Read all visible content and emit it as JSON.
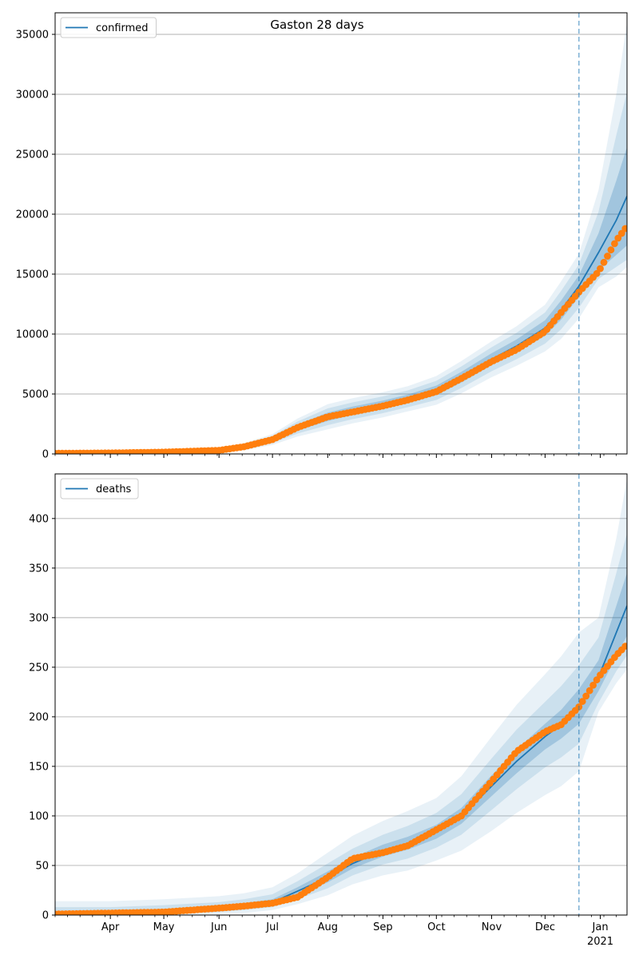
{
  "figure": {
    "title": "Gaston 28 days"
  },
  "colors": {
    "model": "#1f77b4",
    "observed": "#ff7f0e",
    "band": "#1f77b4",
    "grid": "#b0b0b0",
    "forecast_line": "#1f77b4"
  },
  "x_axis": {
    "month_ticks": [
      {
        "date": "2020-04-01",
        "label": "Apr"
      },
      {
        "date": "2020-05-01",
        "label": "May"
      },
      {
        "date": "2020-06-01",
        "label": "Jun"
      },
      {
        "date": "2020-07-01",
        "label": "Jul"
      },
      {
        "date": "2020-08-01",
        "label": "Aug"
      },
      {
        "date": "2020-09-01",
        "label": "Sep"
      },
      {
        "date": "2020-10-01",
        "label": "Oct"
      },
      {
        "date": "2020-11-01",
        "label": "Nov"
      },
      {
        "date": "2020-12-01",
        "label": "Dec"
      },
      {
        "date": "2021-01-01",
        "label": "Jan",
        "sublabel": "2021"
      }
    ]
  },
  "chart_data": [
    {
      "type": "line",
      "title": "Gaston 28 days",
      "legend": {
        "label": "confirmed",
        "placement": "top-left"
      },
      "xlim": [
        "2020-03-01",
        "2021-01-16"
      ],
      "ylim": [
        0,
        36800
      ],
      "yticks": [
        0,
        5000,
        10000,
        15000,
        20000,
        25000,
        30000,
        35000
      ],
      "grid": "horizontal",
      "forecast_start": "2020-12-20",
      "model": {
        "name": "confirmed",
        "x": [
          "2020-03-01",
          "2020-04-01",
          "2020-05-01",
          "2020-06-01",
          "2020-06-15",
          "2020-07-01",
          "2020-07-15",
          "2020-08-01",
          "2020-08-15",
          "2020-09-01",
          "2020-09-15",
          "2020-10-01",
          "2020-10-15",
          "2020-11-01",
          "2020-11-15",
          "2020-12-01",
          "2020-12-10",
          "2020-12-20",
          "2020-12-31",
          "2021-01-10",
          "2021-01-16"
        ],
        "y": [
          50,
          80,
          150,
          300,
          600,
          1200,
          2200,
          3100,
          3600,
          4100,
          4600,
          5300,
          6400,
          7900,
          9000,
          10500,
          12000,
          14000,
          16800,
          19500,
          21500
        ],
        "bands": [
          {
            "lower": [
              40,
              60,
              120,
              250,
              500,
              1050,
              1950,
              2750,
              3250,
              3750,
              4250,
              4900,
              5950,
              7400,
              8450,
              9850,
              11200,
              13100,
              15300,
              16600,
              17400
            ],
            "upper": [
              60,
              100,
              180,
              350,
              700,
              1350,
              2450,
              3450,
              3950,
              4450,
              4950,
              5700,
              6850,
              8400,
              9550,
              11150,
              12800,
              14900,
              18400,
              22800,
              25600
            ]
          },
          {
            "lower": [
              30,
              40,
              90,
              200,
              400,
              900,
              1700,
              2400,
              2900,
              3400,
              3900,
              4500,
              5500,
              6900,
              7900,
              9200,
              10400,
              12200,
              14600,
              15600,
              16200
            ],
            "upper": [
              70,
              120,
              210,
              400,
              800,
              1500,
              2700,
              3800,
              4300,
              4800,
              5300,
              6100,
              7300,
              8900,
              10100,
              11800,
              13600,
              15800,
              20200,
              26600,
              30200
            ]
          },
          {
            "lower": [
              20,
              20,
              60,
              150,
              300,
              750,
              1450,
              2050,
              2550,
              3050,
              3550,
              4100,
              5050,
              6400,
              7350,
              8550,
              9600,
              11300,
              13900,
              14800,
              15600
            ],
            "upper": [
              80,
              140,
              240,
              450,
              900,
              1650,
              2950,
              4150,
              4650,
              5150,
              5650,
              6500,
              7750,
              9400,
              10650,
              12450,
              14400,
              16700,
              22000,
              30000,
              36000
            ]
          }
        ]
      },
      "observed": {
        "name": "observed",
        "x": [
          "2020-03-01",
          "2020-04-01",
          "2020-05-01",
          "2020-06-01",
          "2020-06-15",
          "2020-07-01",
          "2020-07-15",
          "2020-08-01",
          "2020-08-15",
          "2020-09-01",
          "2020-09-15",
          "2020-10-01",
          "2020-10-15",
          "2020-11-01",
          "2020-11-15",
          "2020-12-01",
          "2020-12-10",
          "2020-12-20",
          "2020-12-31",
          "2021-01-10",
          "2021-01-16"
        ],
        "y": [
          50,
          80,
          150,
          300,
          600,
          1200,
          2200,
          3100,
          3500,
          4000,
          4500,
          5200,
          6300,
          7700,
          8700,
          10200,
          11800,
          13500,
          15200,
          17800,
          19000
        ]
      }
    },
    {
      "type": "line",
      "title": "",
      "legend": {
        "label": "deaths",
        "placement": "top-left"
      },
      "xlim": [
        "2020-03-01",
        "2021-01-16"
      ],
      "ylim": [
        0,
        445
      ],
      "yticks": [
        0,
        50,
        100,
        150,
        200,
        250,
        300,
        350,
        400
      ],
      "grid": "horizontal",
      "forecast_start": "2020-12-20",
      "model": {
        "name": "deaths",
        "x": [
          "2020-03-01",
          "2020-04-01",
          "2020-05-01",
          "2020-06-01",
          "2020-06-15",
          "2020-07-01",
          "2020-07-15",
          "2020-08-01",
          "2020-08-15",
          "2020-09-01",
          "2020-09-15",
          "2020-10-01",
          "2020-10-15",
          "2020-11-01",
          "2020-11-15",
          "2020-12-01",
          "2020-12-10",
          "2020-12-20",
          "2020-12-31",
          "2021-01-10",
          "2021-01-16"
        ],
        "y": [
          1,
          2,
          4,
          7,
          9,
          13,
          24,
          38,
          52,
          65,
          72,
          84,
          100,
          130,
          155,
          180,
          192,
          210,
          240,
          285,
          312
        ],
        "bands": [
          {
            "lower": [
              0,
              1,
              3,
              5,
              7,
              11,
              20,
              33,
              47,
              59,
              66,
              77,
              92,
              120,
              143,
              167,
              178,
              193,
              226,
              261,
              282
            ],
            "upper": [
              3,
              4,
              6,
              9,
              12,
              16,
              28,
              44,
              58,
              71,
              79,
              91,
              108,
              141,
              167,
              193,
              207,
              228,
              257,
              312,
              345
            ]
          },
          {
            "lower": [
              0,
              0,
              1,
              3,
              5,
              8,
              16,
              27,
              40,
              51,
              57,
              68,
              81,
              106,
              127,
              149,
              159,
              173,
              214,
              246,
              262
            ],
            "upper": [
              8,
              8,
              10,
              13,
              16,
              21,
              34,
              52,
              67,
              81,
              90,
              103,
              122,
              158,
              187,
              215,
              231,
              252,
              280,
              345,
              385
            ]
          },
          {
            "lower": [
              0,
              0,
              0,
              1,
              2,
              5,
              11,
              20,
              31,
              40,
              45,
              55,
              65,
              85,
              103,
              121,
              130,
              145,
              205,
              234,
              248
            ],
            "upper": [
              14,
              14,
              16,
              19,
              22,
              28,
              42,
              63,
              80,
              95,
              105,
              118,
              140,
              180,
              212,
              243,
              261,
              285,
              300,
              380,
              440
            ]
          }
        ]
      },
      "observed": {
        "name": "observed",
        "x": [
          "2020-03-01",
          "2020-04-01",
          "2020-05-01",
          "2020-06-01",
          "2020-06-15",
          "2020-07-01",
          "2020-07-15",
          "2020-08-01",
          "2020-08-15",
          "2020-09-01",
          "2020-09-15",
          "2020-10-01",
          "2020-10-15",
          "2020-11-01",
          "2020-11-15",
          "2020-12-01",
          "2020-12-10",
          "2020-12-20",
          "2020-12-31",
          "2021-01-10",
          "2021-01-16"
        ],
        "y": [
          1,
          2,
          3,
          7,
          9,
          12,
          18,
          38,
          57,
          63,
          70,
          86,
          100,
          135,
          165,
          185,
          192,
          210,
          240,
          262,
          273
        ]
      }
    }
  ]
}
